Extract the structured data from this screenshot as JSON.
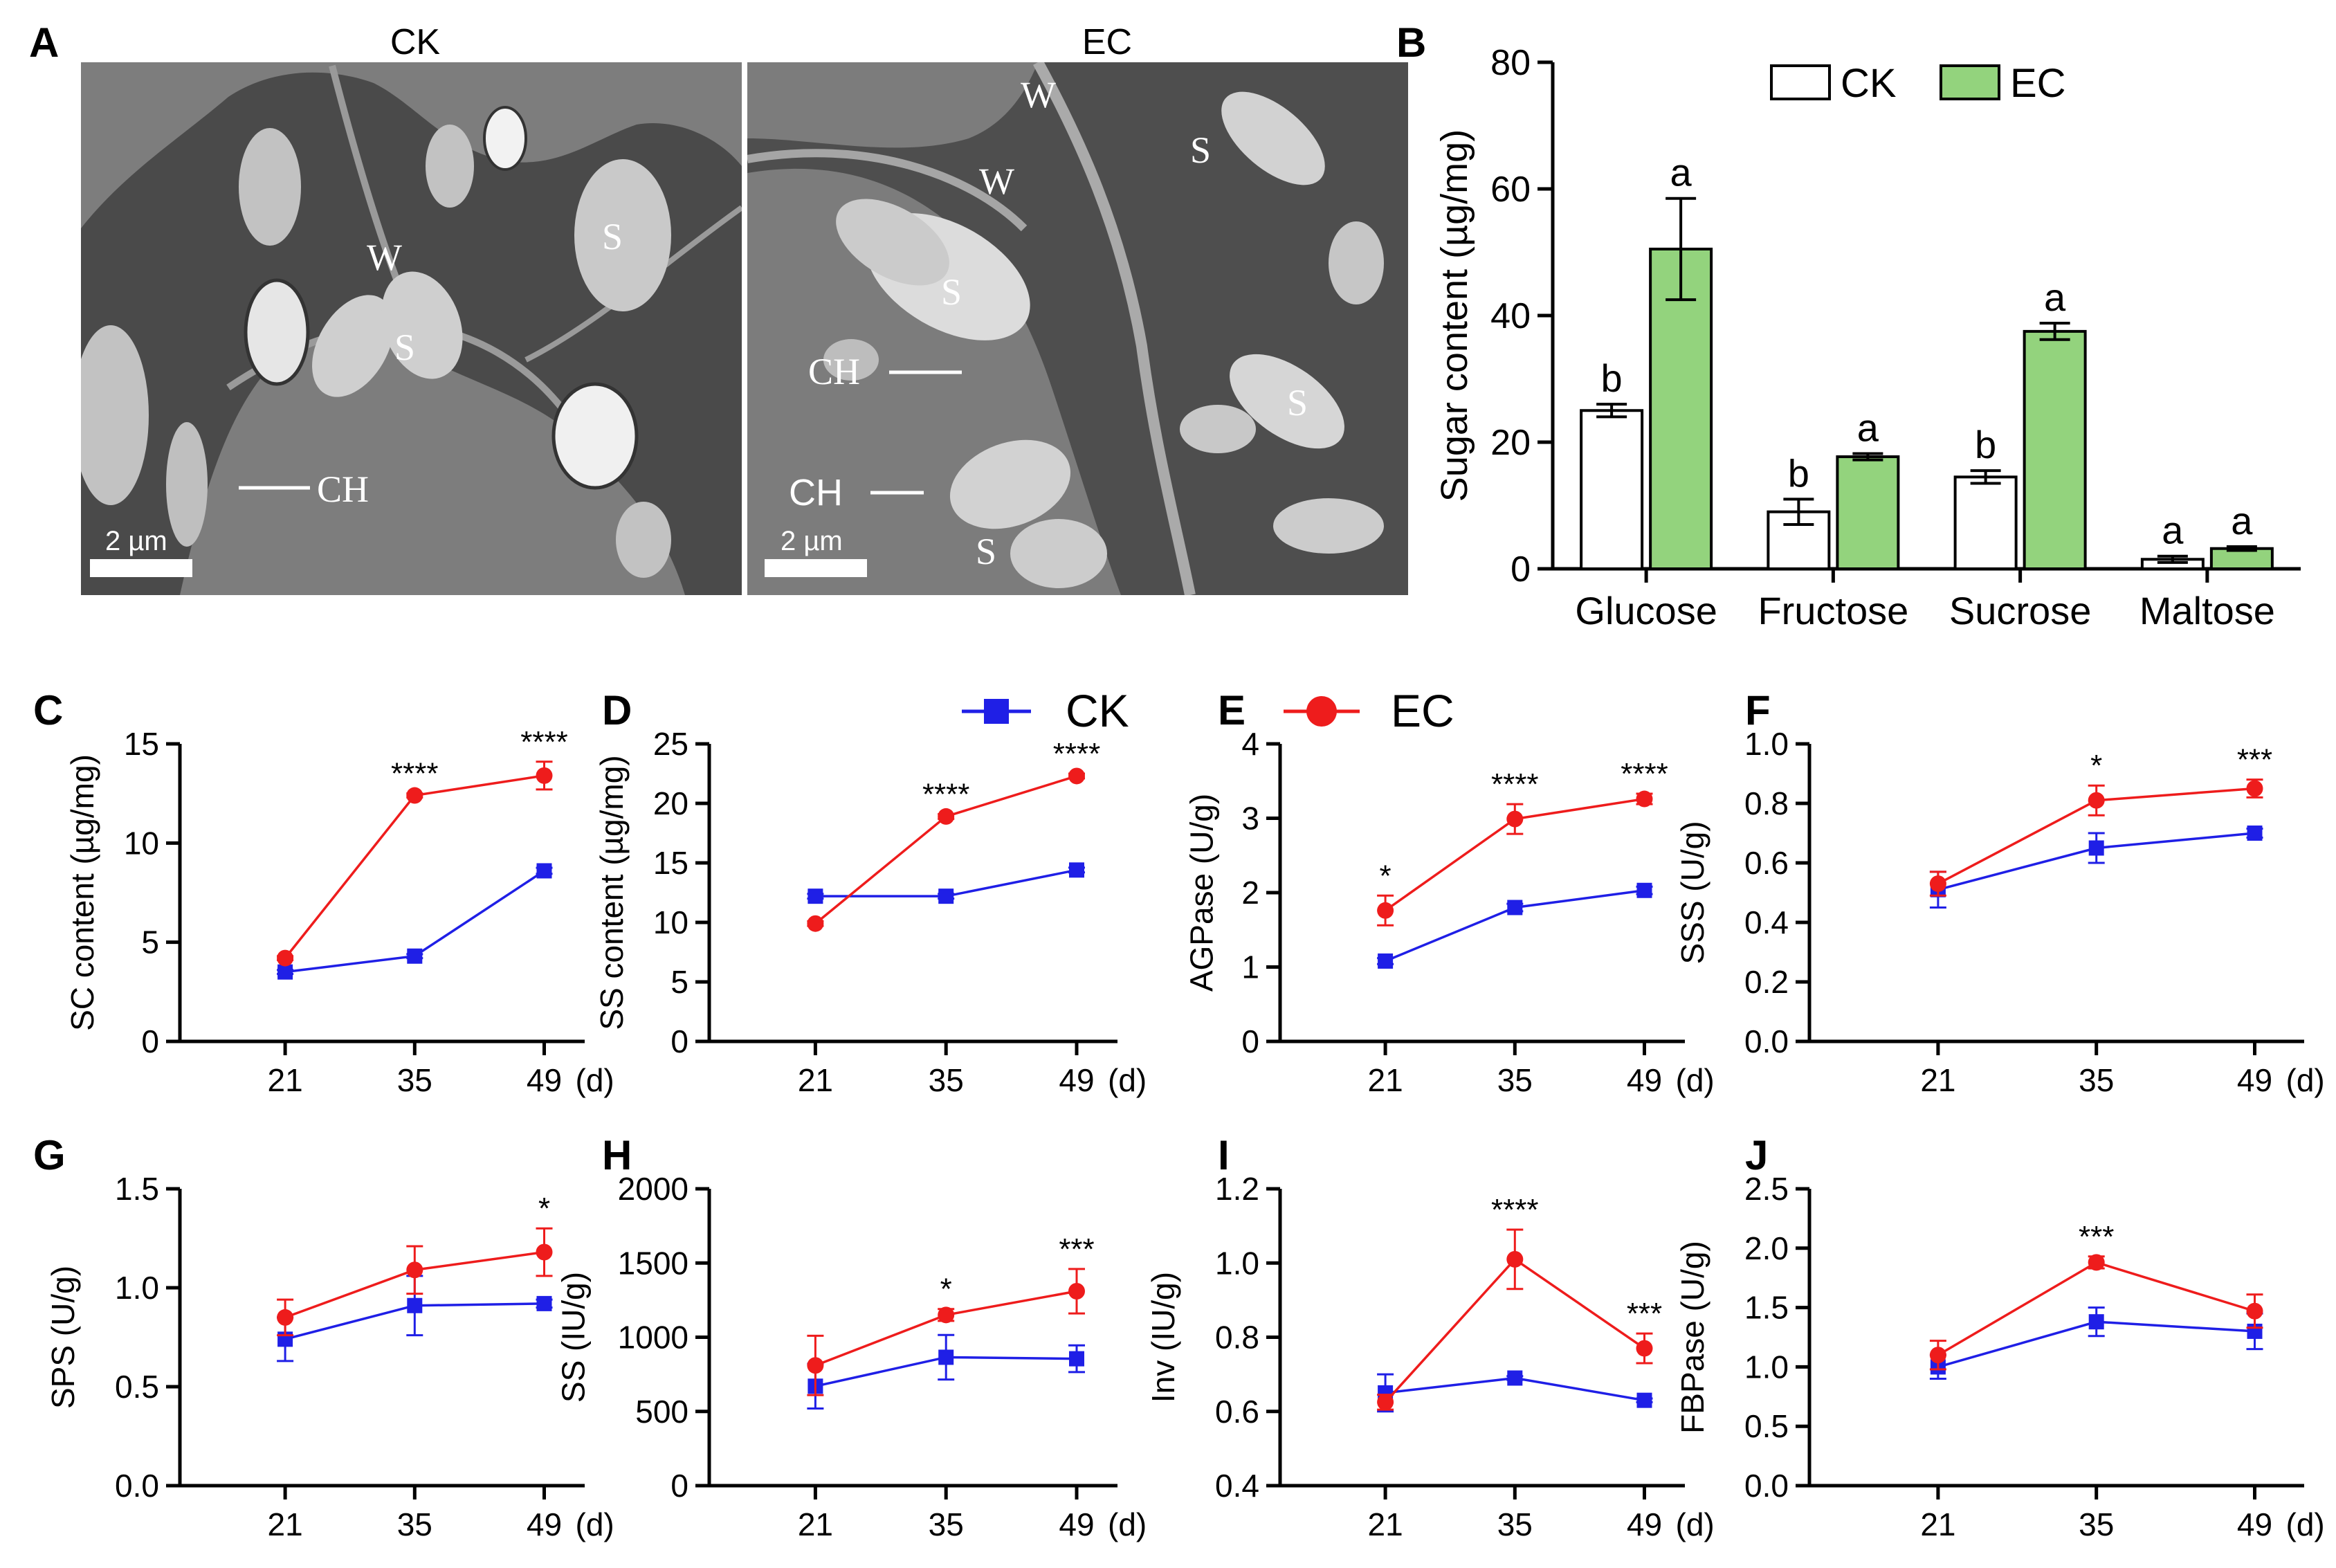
{
  "colors": {
    "ck": "#1f1fe6",
    "ec": "#ee1c1c",
    "ec_bar": "#93d37d",
    "ck_bar": "#ffffff",
    "tem_dark": "#4c4c4c",
    "tem_bg": "#7c7c7c"
  },
  "panel_a": {
    "letter": "A",
    "left": {
      "title": "CK",
      "labels": [
        "W",
        "S",
        "S",
        "CH"
      ],
      "scale": "2 µm"
    },
    "right": {
      "title": "EC",
      "labels": [
        "W",
        "W",
        "S",
        "S",
        "S",
        "S",
        "CH",
        "CH"
      ],
      "scale": "2 µm"
    }
  },
  "legend_ck": "CK",
  "legend_ec": "EC",
  "chart_data": [
    {
      "panel": "B",
      "type": "bar",
      "categories": [
        "Glucose",
        "Fructose",
        "Sucrose",
        "Maltose"
      ],
      "series": [
        {
          "name": "CK",
          "values": [
            25,
            9,
            14.5,
            1.5
          ],
          "errors": [
            1,
            2,
            1,
            0.5
          ],
          "letters": [
            "b",
            "b",
            "b",
            "a"
          ]
        },
        {
          "name": "EC",
          "values": [
            50.5,
            17.7,
            37.5,
            3.2
          ],
          "errors": [
            8,
            0.5,
            1.3,
            0.3
          ],
          "letters": [
            "a",
            "a",
            "a",
            "a"
          ]
        }
      ],
      "ylabel": "Sugar content (µg/mg)",
      "ylim": [
        0,
        80
      ],
      "yticks": [
        "0",
        "20",
        "40",
        "60",
        "80"
      ],
      "legend": "top-right"
    },
    {
      "panel": "C",
      "type": "line",
      "x": [
        21,
        35,
        49
      ],
      "xticks": [
        "21",
        "35",
        "49"
      ],
      "xunit": "(d)",
      "ylabel": "SC content (µg/mg)",
      "ylim": [
        0,
        15
      ],
      "yticks": [
        "0",
        "5",
        "10",
        "15"
      ],
      "series": [
        {
          "name": "CK",
          "values": [
            3.5,
            4.3,
            8.6
          ],
          "errors": [
            0.1,
            0.1,
            0.15
          ]
        },
        {
          "name": "EC",
          "values": [
            4.2,
            12.4,
            13.4
          ],
          "errors": [
            0.1,
            0.1,
            0.7
          ]
        }
      ],
      "sig": [
        "",
        "****",
        "****"
      ]
    },
    {
      "panel": "D",
      "type": "line",
      "x": [
        21,
        35,
        49
      ],
      "xticks": [
        "21",
        "35",
        "49"
      ],
      "xunit": "(d)",
      "ylabel": "SS content (µg/mg)",
      "ylim": [
        0,
        25
      ],
      "yticks": [
        "0",
        "5",
        "10",
        "15",
        "20",
        "25"
      ],
      "series": [
        {
          "name": "CK",
          "values": [
            12.2,
            12.2,
            14.4
          ],
          "errors": [
            0.2,
            0.2,
            0.2
          ]
        },
        {
          "name": "EC",
          "values": [
            9.9,
            18.9,
            22.3
          ],
          "errors": [
            0.2,
            0.2,
            0.2
          ]
        }
      ],
      "sig": [
        "",
        "****",
        "****"
      ]
    },
    {
      "panel": "E",
      "type": "line",
      "x": [
        21,
        35,
        49
      ],
      "xticks": [
        "21",
        "35",
        "49"
      ],
      "xunit": "(d)",
      "ylabel": "AGPase (U/g)",
      "ylim": [
        0,
        4
      ],
      "yticks": [
        "0",
        "1",
        "2",
        "3",
        "4"
      ],
      "series": [
        {
          "name": "CK",
          "values": [
            1.08,
            1.8,
            2.03
          ],
          "errors": [
            0.04,
            0.05,
            0.05
          ]
        },
        {
          "name": "EC",
          "values": [
            1.76,
            2.99,
            3.26
          ],
          "errors": [
            0.2,
            0.2,
            0.07
          ]
        }
      ],
      "sig": [
        "*",
        "****",
        "****"
      ]
    },
    {
      "panel": "F",
      "type": "line",
      "x": [
        21,
        35,
        49
      ],
      "xticks": [
        "21",
        "35",
        "49"
      ],
      "xunit": "(d)",
      "ylabel": "SSS (U/g)",
      "ylim": [
        0,
        1
      ],
      "yticks": [
        "0.0",
        "0.2",
        "0.4",
        "0.6",
        "0.8",
        "1.0"
      ],
      "series": [
        {
          "name": "CK",
          "values": [
            0.51,
            0.65,
            0.7
          ],
          "errors": [
            0.06,
            0.05,
            0.015
          ]
        },
        {
          "name": "EC",
          "values": [
            0.53,
            0.81,
            0.85
          ],
          "errors": [
            0.04,
            0.05,
            0.03
          ]
        }
      ],
      "sig": [
        "",
        "*",
        "***"
      ]
    },
    {
      "panel": "G",
      "type": "line",
      "x": [
        21,
        35,
        49
      ],
      "xticks": [
        "21",
        "35",
        "49"
      ],
      "xunit": "(d)",
      "ylabel": "SPS (U/g)",
      "ylim": [
        0,
        1.5
      ],
      "yticks": [
        "0.0",
        "0.5",
        "1.0",
        "1.5"
      ],
      "series": [
        {
          "name": "CK",
          "values": [
            0.74,
            0.91,
            0.92
          ],
          "errors": [
            0.11,
            0.15,
            0.02
          ]
        },
        {
          "name": "EC",
          "values": [
            0.85,
            1.09,
            1.18
          ],
          "errors": [
            0.09,
            0.12,
            0.12
          ]
        }
      ],
      "sig": [
        "",
        "",
        "*"
      ]
    },
    {
      "panel": "H",
      "type": "line",
      "x": [
        21,
        35,
        49
      ],
      "xticks": [
        "21",
        "35",
        "49"
      ],
      "xunit": "(d)",
      "ylabel": "SS (IU/g)",
      "ylim": [
        0,
        2000
      ],
      "yticks": [
        "0",
        "500",
        "1000",
        "1500",
        "2000"
      ],
      "series": [
        {
          "name": "CK",
          "values": [
            670,
            865,
            855
          ],
          "errors": [
            150,
            150,
            90
          ]
        },
        {
          "name": "EC",
          "values": [
            810,
            1150,
            1310
          ],
          "errors": [
            200,
            40,
            150
          ]
        }
      ],
      "sig": [
        "",
        "*",
        "***"
      ]
    },
    {
      "panel": "I",
      "type": "line",
      "x": [
        21,
        35,
        49
      ],
      "xticks": [
        "21",
        "35",
        "49"
      ],
      "xunit": "(d)",
      "ylabel": "Inv (IU/g)",
      "ylim": [
        0.4,
        1.2
      ],
      "yticks": [
        "0.4",
        "0.6",
        "0.8",
        "1.0",
        "1.2"
      ],
      "series": [
        {
          "name": "CK",
          "values": [
            0.65,
            0.69,
            0.63
          ],
          "errors": [
            0.05,
            0.005,
            0.005
          ]
        },
        {
          "name": "EC",
          "values": [
            0.625,
            1.01,
            0.77
          ],
          "errors": [
            0.02,
            0.08,
            0.04
          ]
        }
      ],
      "sig": [
        "",
        "****",
        "***"
      ]
    },
    {
      "panel": "J",
      "type": "line",
      "x": [
        21,
        35,
        49
      ],
      "xticks": [
        "21",
        "35",
        "49"
      ],
      "xunit": "(d)",
      "ylabel": "FBPase  (U/g)",
      "ylim": [
        0,
        2.5
      ],
      "yticks": [
        "0.0",
        "0.5",
        "1.0",
        "1.5",
        "2.0",
        "2.5"
      ],
      "series": [
        {
          "name": "CK",
          "values": [
            1.0,
            1.38,
            1.3
          ],
          "errors": [
            0.1,
            0.12,
            0.15
          ]
        },
        {
          "name": "EC",
          "values": [
            1.1,
            1.88,
            1.47
          ],
          "errors": [
            0.12,
            0.05,
            0.14
          ]
        }
      ],
      "sig": [
        "",
        "***",
        ""
      ]
    }
  ]
}
